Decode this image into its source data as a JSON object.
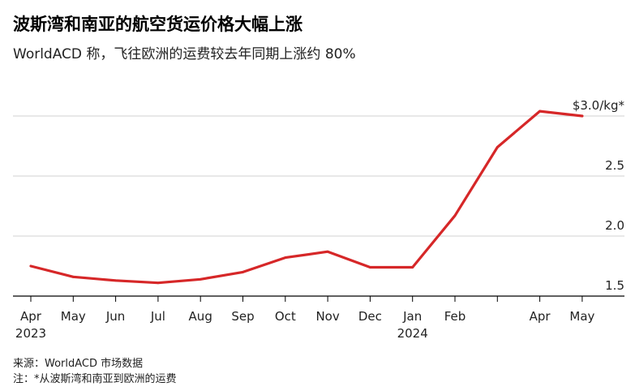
{
  "header": {
    "title": "波斯湾和南亚的航空货运价格大幅上涨",
    "subtitle": "WorldACD 称，飞往欧洲的运费较去年同期上涨约 80%"
  },
  "footer": {
    "source": "来源：WorldACD 市场数据",
    "note": "注：*从波斯湾和南亚到欧洲的运费"
  },
  "chart_data": {
    "type": "line",
    "x": [
      "2023-04",
      "2023-05",
      "2023-06",
      "2023-07",
      "2023-08",
      "2023-09",
      "2023-10",
      "2023-11",
      "2023-12",
      "2024-01",
      "2024-02",
      "2024-03",
      "2024-04",
      "2024-05"
    ],
    "series": [
      {
        "values": [
          1.75,
          1.66,
          1.63,
          1.61,
          1.64,
          1.7,
          1.82,
          1.87,
          1.74,
          1.74,
          2.17,
          2.74,
          3.04,
          3.0
        ],
        "color": "#d62728"
      }
    ],
    "x_tick_labels": [
      {
        "label": "Apr",
        "year": "2023",
        "x": "2023-04"
      },
      {
        "label": "May",
        "year": "",
        "x": "2023-05"
      },
      {
        "label": "Jun",
        "year": "",
        "x": "2023-06"
      },
      {
        "label": "Jul",
        "year": "",
        "x": "2023-07"
      },
      {
        "label": "Aug",
        "year": "",
        "x": "2023-08"
      },
      {
        "label": "Sep",
        "year": "",
        "x": "2023-09"
      },
      {
        "label": "Oct",
        "year": "",
        "x": "2023-10"
      },
      {
        "label": "Nov",
        "year": "",
        "x": "2023-11"
      },
      {
        "label": "Dec",
        "year": "",
        "x": "2023-12"
      },
      {
        "label": "Jan",
        "year": "2024",
        "x": "2024-01"
      },
      {
        "label": "Feb",
        "year": "",
        "x": "2024-02"
      },
      {
        "label": "Apr",
        "year": "",
        "x": "2024-04"
      },
      {
        "label": "May",
        "year": "",
        "x": "2024-05"
      }
    ],
    "y_ticks": [
      {
        "value": 1.5,
        "label": "1.5"
      },
      {
        "value": 2.0,
        "label": "2.0"
      },
      {
        "value": 2.5,
        "label": "2.5"
      },
      {
        "value": 3.0,
        "label": "$3.0/kg*"
      }
    ],
    "ylim": [
      1.5,
      3.0
    ],
    "grid": true,
    "axis_color": "#000000",
    "grid_color": "#d0d0d0"
  }
}
